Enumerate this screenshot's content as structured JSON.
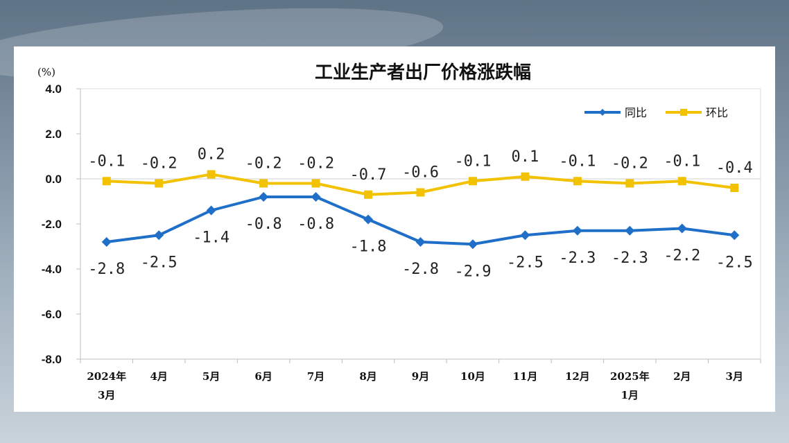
{
  "chart_data": {
    "type": "line",
    "title": "工业生产者出厂价格涨跌幅",
    "ylabel": "(%)",
    "ylim": [
      -8.0,
      4.0
    ],
    "yticks": [
      "4.0",
      "2.0",
      "0.0",
      "-2.0",
      "-4.0",
      "-6.0",
      "-8.0"
    ],
    "yticks_values": [
      4,
      2,
      0,
      -2,
      -4,
      -6,
      -8
    ],
    "categories": [
      [
        "2024年",
        "3月"
      ],
      [
        "4月"
      ],
      [
        "5月"
      ],
      [
        "6月"
      ],
      [
        "7月"
      ],
      [
        "8月"
      ],
      [
        "9月"
      ],
      [
        "10月"
      ],
      [
        "11月"
      ],
      [
        "12月"
      ],
      [
        "2025年",
        "1月"
      ],
      [
        "2月"
      ],
      [
        "3月"
      ]
    ],
    "legend_position": "top-right",
    "grid": false,
    "series": [
      {
        "name": "同比",
        "color": "#1f6fc8",
        "marker": "diamond",
        "values": [
          -2.8,
          -2.5,
          -1.4,
          -0.8,
          -0.8,
          -1.8,
          -2.8,
          -2.9,
          -2.5,
          -2.3,
          -2.3,
          -2.2,
          -2.5
        ],
        "labels": [
          "-2.8",
          "-2.5",
          "-1.4",
          "-0.8",
          "-0.8",
          "-1.8",
          "-2.8",
          "-2.9",
          "-2.5",
          "-2.3",
          "-2.3",
          "-2.2",
          "-2.5"
        ]
      },
      {
        "name": "环比",
        "color": "#f2c200",
        "marker": "square",
        "values": [
          -0.1,
          -0.2,
          0.2,
          -0.2,
          -0.2,
          -0.7,
          -0.6,
          -0.1,
          0.1,
          -0.1,
          -0.2,
          -0.1,
          -0.4
        ],
        "labels": [
          "-0.1",
          "-0.2",
          "0.2",
          "-0.2",
          "-0.2",
          "-0.7",
          "-0.6",
          "-0.1",
          "0.1",
          "-0.1",
          "-0.2",
          "-0.1",
          "-0.4"
        ]
      }
    ]
  }
}
